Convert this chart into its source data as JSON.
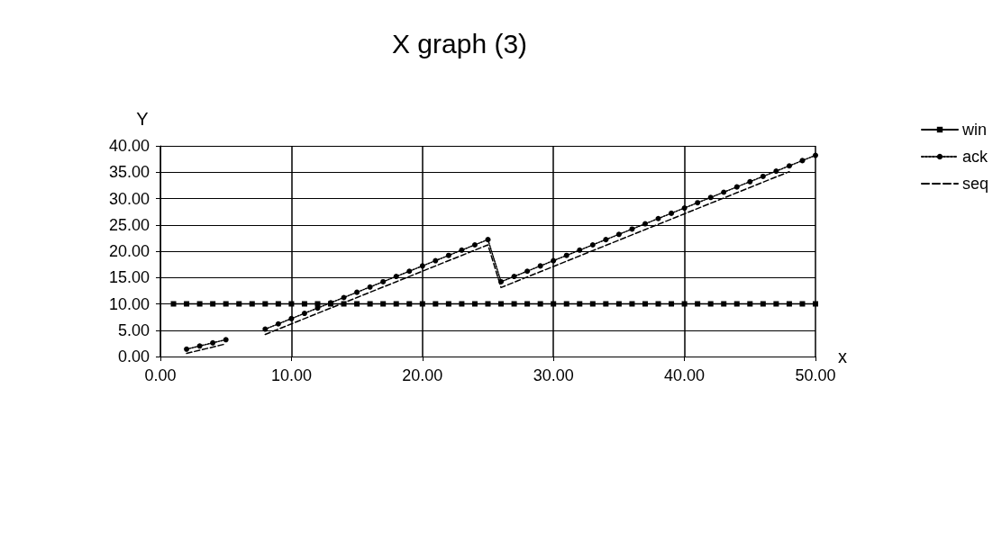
{
  "chart_data": {
    "type": "line",
    "title": "X graph (3)",
    "xlabel": "x",
    "ylabel": "Y",
    "xlim": [
      0,
      50
    ],
    "xticks": [
      {
        "value": 0,
        "label": "0.00"
      },
      {
        "value": 10,
        "label": "10.00"
      },
      {
        "value": 20,
        "label": "20.00"
      },
      {
        "value": 30,
        "label": "30.00"
      },
      {
        "value": 40,
        "label": "40.00"
      },
      {
        "value": 50,
        "label": "50.00"
      }
    ],
    "ylim": [
      0,
      40
    ],
    "yticks": [
      {
        "value": 0,
        "label": "0.00"
      },
      {
        "value": 5,
        "label": "5.00"
      },
      {
        "value": 10,
        "label": "10.00"
      },
      {
        "value": 15,
        "label": "15.00"
      },
      {
        "value": 20,
        "label": "20.00"
      },
      {
        "value": 25,
        "label": "25.00"
      },
      {
        "value": 30,
        "label": "30.00"
      },
      {
        "value": 35,
        "label": "35.00"
      },
      {
        "value": 40,
        "label": "40.00"
      }
    ],
    "grid": true,
    "legend": "right",
    "series": [
      {
        "name": "win",
        "color": "#000000",
        "marker": "square",
        "line_style": "solid",
        "x": [
          1,
          2,
          3,
          4,
          5,
          6,
          7,
          8,
          9,
          10,
          11,
          12,
          13,
          14,
          15,
          16,
          17,
          18,
          19,
          20,
          21,
          22,
          23,
          24,
          25,
          26,
          27,
          28,
          29,
          30,
          31,
          32,
          33,
          34,
          35,
          36,
          37,
          38,
          39,
          40,
          41,
          42,
          43,
          44,
          45,
          46,
          47,
          48,
          49,
          50
        ],
        "values": [
          10,
          10,
          10,
          10,
          10,
          10,
          10,
          10,
          10,
          10,
          10,
          10,
          10,
          10,
          10,
          10,
          10,
          10,
          10,
          10,
          10,
          10,
          10,
          10,
          10,
          10,
          10,
          10,
          10,
          10,
          10,
          10,
          10,
          10,
          10,
          10,
          10,
          10,
          10,
          10,
          10,
          10,
          10,
          10,
          10,
          10,
          10,
          10,
          10,
          10
        ]
      },
      {
        "name": "ack",
        "color": "#000000",
        "marker": "circle",
        "line_style": "dotted",
        "x": [
          2,
          3,
          4,
          5,
          6,
          7,
          8,
          9,
          10,
          11,
          12,
          13,
          14,
          15,
          16,
          17,
          18,
          19,
          20,
          21,
          22,
          23,
          24,
          25,
          26,
          27,
          28,
          29,
          30,
          31,
          32,
          33,
          34,
          35,
          36,
          37,
          38,
          39,
          40,
          41,
          42,
          43,
          44,
          45,
          46,
          47,
          48,
          49,
          50
        ],
        "values": [
          1.4,
          2.0,
          2.6,
          3.2,
          null,
          null,
          5.2,
          6.2,
          7.2,
          8.2,
          9.2,
          10.2,
          11.2,
          12.2,
          13.2,
          14.2,
          15.2,
          16.2,
          17.2,
          18.2,
          19.2,
          20.2,
          21.2,
          22.2,
          14.2,
          15.2,
          16.2,
          17.2,
          18.2,
          19.2,
          20.2,
          21.2,
          22.2,
          23.2,
          24.2,
          25.2,
          26.2,
          27.2,
          28.2,
          29.2,
          30.2,
          31.2,
          32.2,
          33.2,
          34.2,
          35.2,
          36.2,
          37.2,
          38.2
        ]
      },
      {
        "name": "seq",
        "color": "#000000",
        "marker": "none",
        "line_style": "dashed",
        "x": [
          2,
          3,
          4,
          5,
          6,
          7,
          8,
          9,
          10,
          11,
          12,
          13,
          14,
          15,
          16,
          17,
          18,
          19,
          20,
          21,
          22,
          23,
          24,
          25,
          26,
          27,
          28,
          29,
          30,
          31,
          32,
          33,
          34,
          35,
          36,
          37,
          38,
          39,
          40,
          41,
          42,
          43,
          44,
          45,
          46,
          47,
          48
        ],
        "values": [
          0.6,
          1.2,
          1.8,
          2.4,
          null,
          null,
          4.2,
          5.2,
          6.2,
          7.2,
          8.2,
          9.2,
          10.2,
          11.2,
          12.2,
          13.2,
          14.2,
          15.2,
          16.2,
          17.2,
          18.2,
          19.2,
          20.2,
          21.2,
          13.1,
          14.1,
          15.1,
          16.1,
          17.1,
          18.1,
          19.1,
          20.1,
          21.1,
          22.1,
          23.1,
          24.1,
          25.1,
          26.1,
          27.1,
          28.1,
          29.1,
          30.1,
          31.1,
          32.1,
          33.1,
          34.1,
          35.1
        ]
      }
    ]
  }
}
